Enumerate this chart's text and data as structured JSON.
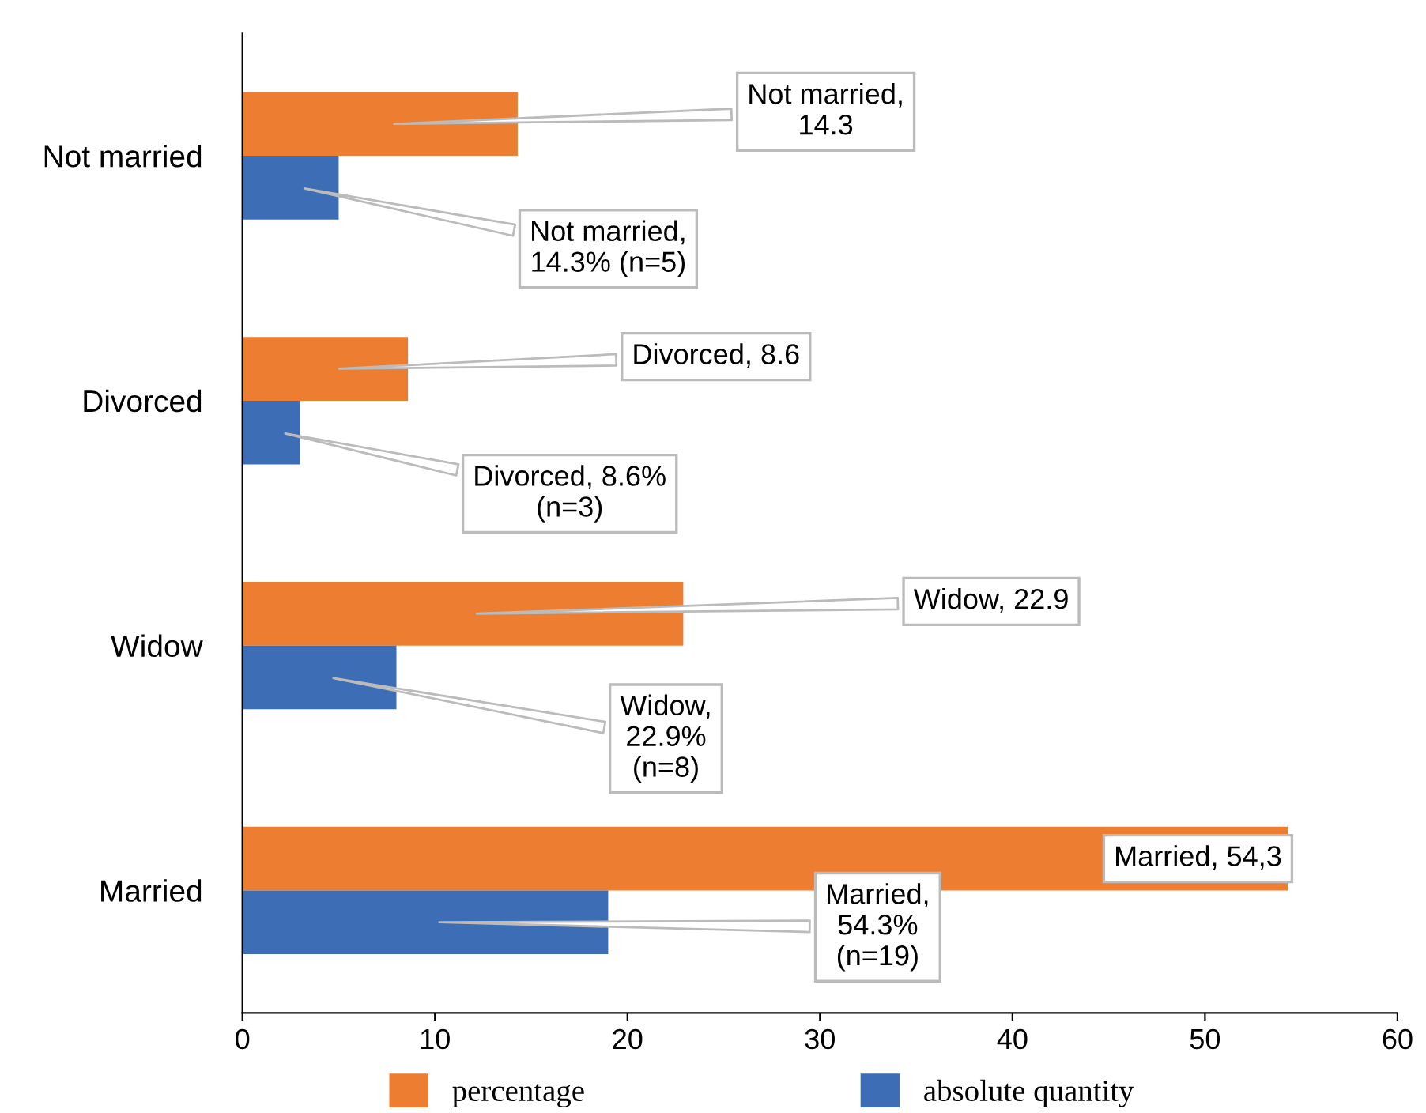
{
  "chart_data": {
    "type": "bar",
    "orientation": "horizontal",
    "categories": [
      "Not married",
      "Divorced",
      "Widow",
      "Married"
    ],
    "series": [
      {
        "name": "percentage",
        "color": "#ed7d31",
        "values": [
          14.3,
          8.6,
          22.9,
          54.3
        ],
        "value_labels": [
          "Not married,\n14.3",
          "Divorced, 8.6",
          "Widow, 22.9",
          "Married, 54,3"
        ]
      },
      {
        "name": "absolute quantity",
        "color": "#3c6db5",
        "values": [
          5,
          3,
          8,
          19
        ],
        "value_labels": [
          "Not married,\n14.3% (n=5)",
          "Divorced, 8.6%\n(n=3)",
          "Widow,\n22.9%\n(n=8)",
          "Married,\n54.3%\n(n=19)"
        ]
      }
    ],
    "xlim": [
      0,
      60
    ],
    "xticks": [
      0,
      10,
      20,
      30,
      40,
      50,
      60
    ],
    "grid": false,
    "legend": "bottom"
  }
}
